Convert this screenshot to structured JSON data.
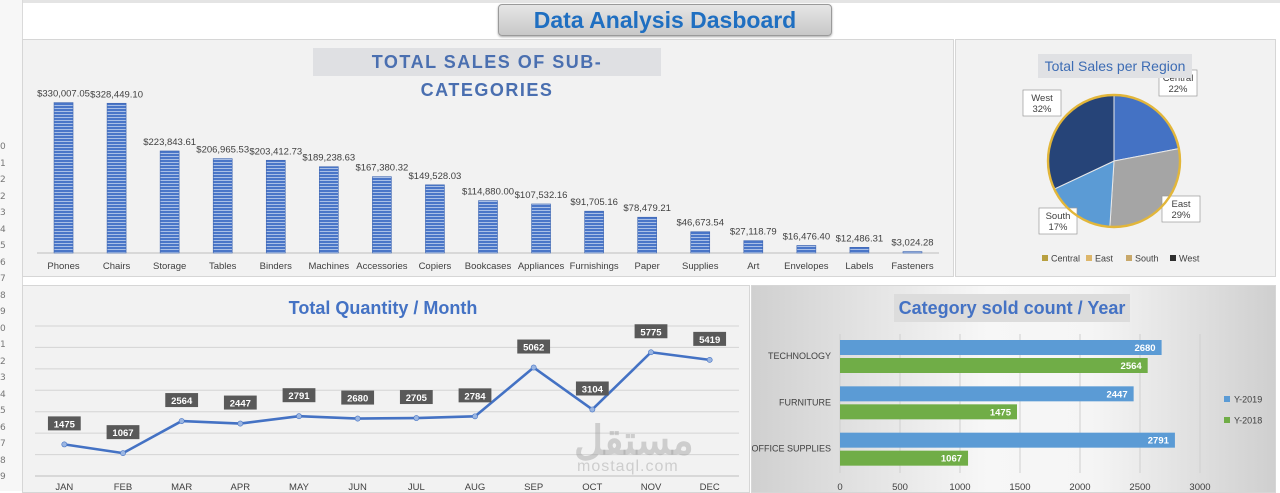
{
  "dashboard_title": "Data Analysis Dasboard",
  "row_numbers": [
    "0",
    "1",
    "2",
    "2",
    "3",
    "4",
    "5",
    "6",
    "7",
    "8",
    "9",
    "0",
    "1",
    "2",
    "3",
    "4",
    "5",
    "6",
    "7",
    "8",
    "9"
  ],
  "watermark": {
    "arabic": "مستقل",
    "latin": "mostaql.com"
  },
  "chart_data": [
    {
      "type": "bar",
      "title": "TOTAL SALES OF SUB-CATEGORIES",
      "categories": [
        "Phones",
        "Chairs",
        "Storage",
        "Tables",
        "Binders",
        "Machines",
        "Accessories",
        "Copiers",
        "Bookcases",
        "Appliances",
        "Furnishings",
        "Paper",
        "Supplies",
        "Art",
        "Envelopes",
        "Labels",
        "Fasteners"
      ],
      "values": [
        330007.05,
        328449.1,
        223843.61,
        206965.53,
        203412.73,
        189238.63,
        167380.32,
        149528.03,
        114880.0,
        107532.16,
        91705.16,
        78479.21,
        46673.54,
        27118.79,
        16476.4,
        12486.31,
        3024.28
      ],
      "data_labels": [
        "$330,007.05",
        "$328,449.10",
        "$223,843.61",
        "$206,965.53",
        "$203,412.73",
        "$189,238.63",
        "$167,380.32",
        "$149,528.03",
        "$114,880.00",
        "$107,532.16",
        "$91,705.16",
        "$78,479.21",
        "$46,673.54",
        "$27,118.79",
        "$16,476.40",
        "$12,486.31",
        "$3,024.28"
      ],
      "ylim": [
        0,
        340000
      ],
      "color": "#4472c4"
    },
    {
      "type": "pie",
      "title": "Total Sales per Region",
      "labels": [
        "Central",
        "East",
        "South",
        "West"
      ],
      "values": [
        22,
        29,
        17,
        32
      ],
      "slice_labels": [
        "22%",
        "29%",
        "17%",
        "32%"
      ],
      "colors": [
        "#4472c4",
        "#a5a5a5",
        "#5b9bd5",
        "#264478"
      ],
      "legend_colors": [
        "#b8a040",
        "#ddb66a",
        "#c8a86a",
        "#2e2e2e"
      ],
      "legend": "bottom"
    },
    {
      "type": "line",
      "title": "Total Quantity / Month",
      "categories": [
        "JAN",
        "FEB",
        "MAR",
        "APR",
        "MAY",
        "JUN",
        "JUL",
        "AUG",
        "SEP",
        "OCT",
        "NOV",
        "DEC"
      ],
      "values": [
        1475,
        1067,
        2564,
        2447,
        2791,
        2680,
        2705,
        2784,
        5062,
        3104,
        5775,
        5419
      ],
      "ylim": [
        0,
        7000
      ],
      "color": "#4472c4"
    },
    {
      "type": "bar",
      "orientation": "horizontal",
      "title": "Category sold count / Year",
      "categories": [
        "TECHNOLOGY",
        "FURNITURE",
        "OFFICE SUPPLIES"
      ],
      "series": [
        {
          "name": "Y-2019",
          "values": [
            2680,
            2447,
            2791
          ],
          "color": "#5b9bd5"
        },
        {
          "name": "Y-2018",
          "values": [
            2564,
            1475,
            1067
          ],
          "color": "#70ad47"
        }
      ],
      "x_ticks": [
        "0",
        "500",
        "1000",
        "1500",
        "2000",
        "2500",
        "3000"
      ],
      "xlim": [
        0,
        3000
      ],
      "legend": "right"
    }
  ]
}
